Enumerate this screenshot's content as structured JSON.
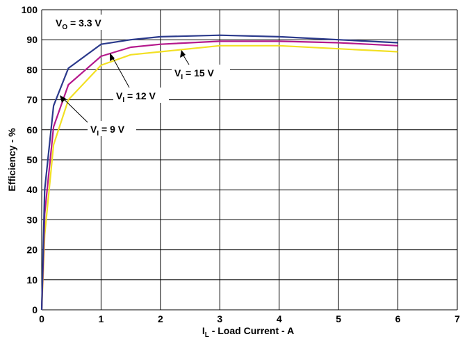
{
  "chart_data": {
    "type": "line",
    "xlabel": {
      "main": "I",
      "sub": "L",
      "rest": " - Load Current - A"
    },
    "ylabel": "Efficiency - %",
    "xlim": [
      0,
      7
    ],
    "ylim": [
      0,
      100
    ],
    "xticks": [
      0,
      1,
      2,
      3,
      4,
      5,
      6,
      7
    ],
    "yticks": [
      0,
      10,
      20,
      30,
      40,
      50,
      60,
      70,
      80,
      90,
      100
    ],
    "grid": true,
    "series": [
      {
        "name": "VI = 15 V",
        "color": "#2b3a8c",
        "x": [
          0,
          0.05,
          0.2,
          0.45,
          1,
          1.5,
          2,
          3,
          4,
          5,
          6
        ],
        "y": [
          0,
          40,
          68,
          80.5,
          88.5,
          90,
          91,
          91.5,
          91,
          90,
          89
        ]
      },
      {
        "name": "VI = 12 V",
        "color": "#b5198c",
        "x": [
          0,
          0.05,
          0.2,
          0.45,
          1,
          1.5,
          2,
          3,
          4,
          5,
          6
        ],
        "y": [
          0,
          32,
          61,
          75,
          84.5,
          87.5,
          88.5,
          89.5,
          89.5,
          89,
          88
        ]
      },
      {
        "name": "VI = 9 V",
        "color": "#f2e024",
        "x": [
          0,
          0.05,
          0.2,
          0.45,
          1,
          1.5,
          2,
          3,
          4,
          5,
          6
        ],
        "y": [
          0,
          25,
          55,
          70,
          81.5,
          85,
          86,
          88,
          88,
          87,
          86
        ]
      }
    ],
    "annotations": [
      {
        "main": "V",
        "sub": "O",
        "rest": " = 3.3 V"
      },
      {
        "main": "V",
        "sub": "I",
        "rest": " = 15 V"
      },
      {
        "main": "V",
        "sub": "I",
        "rest": " = 12 V"
      },
      {
        "main": "V",
        "sub": "I",
        "rest": " = 9 V"
      }
    ]
  }
}
